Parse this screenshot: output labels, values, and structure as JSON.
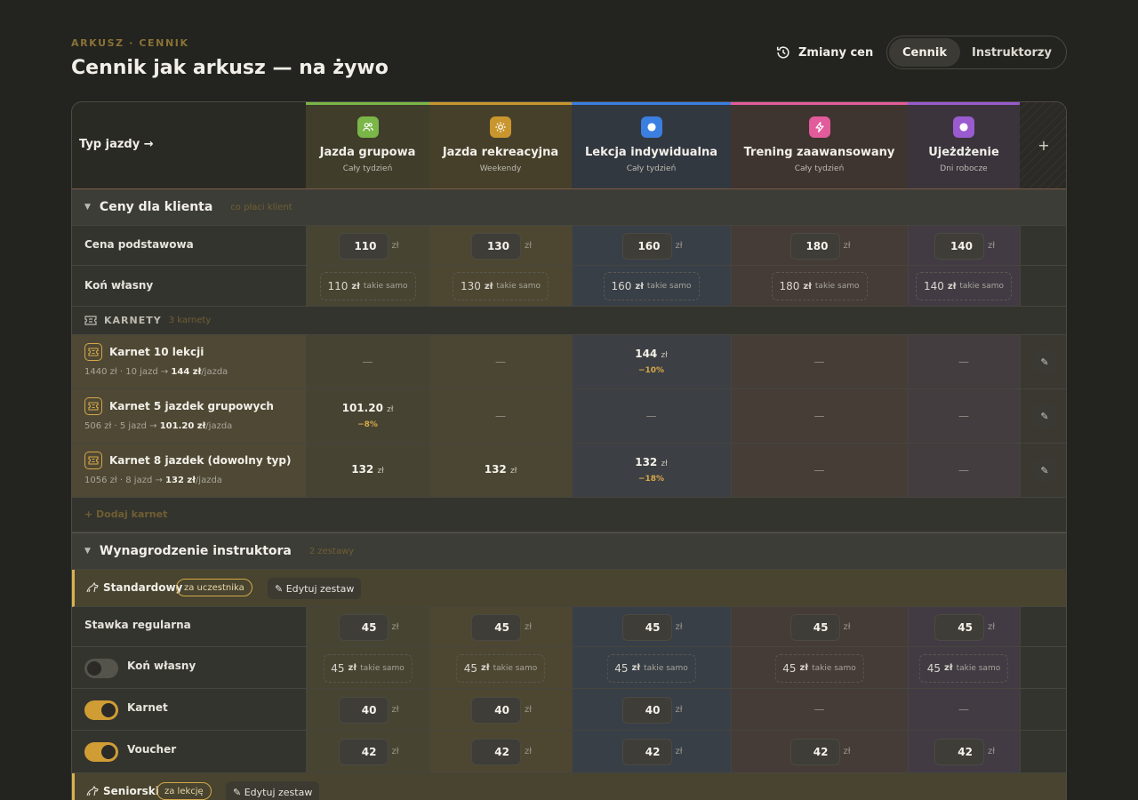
{
  "header": {
    "eyebrow": "ARKUSZ · CENNIK",
    "title": "Cennik jak arkusz — na żywo",
    "history_label": "Zmiany cen",
    "segments": [
      "Cennik",
      "Instruktorzy"
    ]
  },
  "columns_header_label": "Typ jazdy →",
  "add_column_label": "+",
  "columns": [
    {
      "name": "Jazda grupowa",
      "sub": "Cały tydzień",
      "color": "#7ab648",
      "icon": "users-icon"
    },
    {
      "name": "Jazda rekreacyjna",
      "sub": "Weekendy",
      "color": "#c9962e",
      "icon": "sun-icon"
    },
    {
      "name": "Lekcja indywidualna",
      "sub": "Cały tydzień",
      "color": "#3b7fe0",
      "icon": "circle-icon"
    },
    {
      "name": "Trening zaawansowany",
      "sub": "Cały tydzień",
      "color": "#e25b9a",
      "icon": "bolt-icon"
    },
    {
      "name": "Ujeżdżenie",
      "sub": "Dni robocze",
      "color": "#9a5bd0",
      "icon": "circle-icon"
    }
  ],
  "currency": "zł",
  "same_label": "takie samo",
  "client_prices": {
    "title": "Ceny dla klienta",
    "hint": "co płaci klient",
    "base_label": "Cena podstawowa",
    "base": [
      "110",
      "130",
      "160",
      "180",
      "140"
    ],
    "own_horse_label": "Koń własny",
    "own_horse": [
      "110",
      "130",
      "160",
      "180",
      "140"
    ]
  },
  "karnety": {
    "title": "KARNETY",
    "count": "3 karnety",
    "add_label": "+ Dodaj karnet",
    "items": [
      {
        "name": "Karnet 10 lekcji",
        "meta_pre": "1440 zł · 10 jazd → ",
        "meta_price": "144 zł",
        "meta_post": "/jazda",
        "cells": [
          null,
          null,
          {
            "value": "144",
            "disc": "−10%"
          },
          null,
          null
        ]
      },
      {
        "name": "Karnet 5 jazdek grupowych",
        "meta_pre": "506 zł · 5 jazd → ",
        "meta_price": "101.20 zł",
        "meta_post": "/jazda",
        "cells": [
          {
            "value": "101.20",
            "disc": "−8%"
          },
          null,
          null,
          null,
          null
        ]
      },
      {
        "name": "Karnet 8 jazdek (dowolny typ)",
        "meta_pre": "1056 zł · 8 jazd → ",
        "meta_price": "132 zł",
        "meta_post": "/jazda",
        "cells": [
          {
            "value": "132",
            "disc": ""
          },
          {
            "value": "132",
            "disc": ""
          },
          {
            "value": "132",
            "disc": "−18%"
          },
          null,
          null
        ]
      }
    ]
  },
  "instructor": {
    "title": "Wynagrodzenie instruktora",
    "hint": "2 zestawy",
    "sets": [
      {
        "name": "Standardowy",
        "pill": "za uczestnika",
        "edit_label": "✎ Edytuj zestaw"
      },
      {
        "name": "Seniorski",
        "pill": "za lekcję",
        "edit_label": "✎ Edytuj zestaw"
      }
    ],
    "rows": [
      {
        "label": "Stawka regularna",
        "toggle": null,
        "kind": "box",
        "values": [
          "45",
          "45",
          "45",
          "45",
          "45"
        ]
      },
      {
        "label": "Koń własny",
        "toggle": "off",
        "kind": "same",
        "values": [
          "45",
          "45",
          "45",
          "45",
          "45"
        ]
      },
      {
        "label": "Karnet",
        "toggle": "on",
        "kind": "box",
        "values": [
          "40",
          "40",
          "40",
          null,
          null
        ]
      },
      {
        "label": "Voucher",
        "toggle": "on",
        "kind": "box",
        "values": [
          "42",
          "42",
          "42",
          "42",
          "42"
        ]
      }
    ]
  },
  "dash": "—",
  "edit_icon_glyph": "✎"
}
